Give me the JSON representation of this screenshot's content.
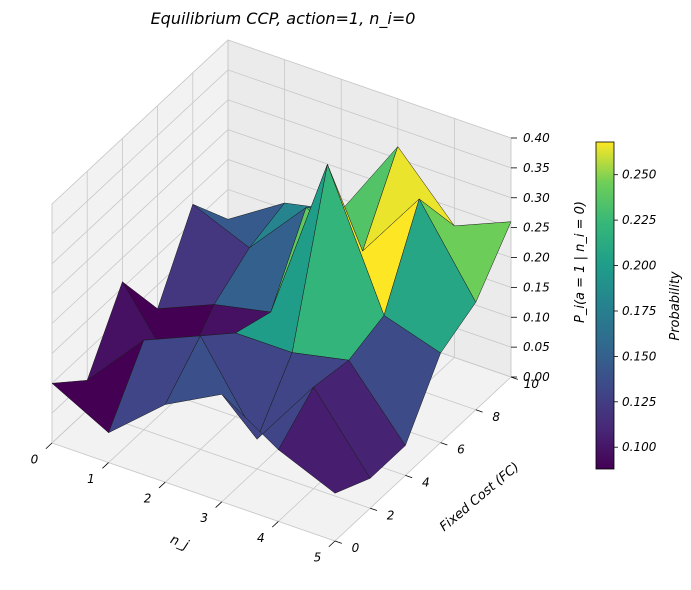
{
  "chart_data": {
    "type": "surface3d",
    "title": "Equilibrium CCP, action=1, n_i=0",
    "xlabel": "n_j",
    "ylabel": "Fixed Cost (FC)",
    "zlabel": "P_i(a = 1 | n_i = 0)",
    "colorbar_label": "Probability",
    "colormap": "viridis",
    "x_ticks": [
      "0",
      "1",
      "2",
      "3",
      "4",
      "5"
    ],
    "y_ticks": [
      "0",
      "2",
      "4",
      "6",
      "8",
      "10"
    ],
    "z_ticks": [
      "0.00",
      "0.05",
      "0.10",
      "0.15",
      "0.20",
      "0.25",
      "0.30",
      "0.35",
      "0.40"
    ],
    "colorbar_ticks": [
      "0.100",
      "0.125",
      "0.150",
      "0.175",
      "0.200",
      "0.225",
      "0.250"
    ],
    "xlim": [
      0,
      5
    ],
    "ylim": [
      0,
      10
    ],
    "zlim": [
      0,
      0.4
    ],
    "clim": [
      0.088,
      0.268
    ],
    "x": [
      0,
      1,
      2,
      3,
      4,
      5
    ],
    "y": [
      0,
      2,
      4,
      6,
      8,
      10
    ],
    "z": [
      [
        0.1,
        0.05,
        0.16,
        0.06,
        0.18,
        0.1
      ],
      [
        0.05,
        0.15,
        0.03,
        0.1,
        0.14,
        0.16
      ],
      [
        0.13,
        0.19,
        0.14,
        0.12,
        0.24,
        0.18
      ],
      [
        0.18,
        0.05,
        0.14,
        0.4,
        0.2,
        0.32
      ],
      [
        0.12,
        0.17,
        0.16,
        0.18,
        0.32,
        0.22
      ],
      [
        0.08,
        0.05,
        0.05,
        0.15,
        0.18,
        0.26
      ]
    ]
  }
}
